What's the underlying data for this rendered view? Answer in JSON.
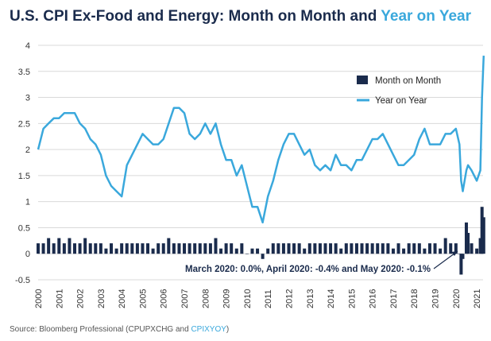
{
  "title": {
    "main": "U.S. CPI Ex-Food and Energy: Month on Month and ",
    "accent": "Year on Year"
  },
  "source": {
    "prefix": "Source: Bloomberg Professional (CPUPXCHG and ",
    "accent": "CPIXYOY",
    "suffix": ")"
  },
  "colors": {
    "mom": "#1a2b4c",
    "yoy": "#3aa8dc",
    "title": "#1a2b4c",
    "grid": "#d9d9d9"
  },
  "chart_data": {
    "type": "bar",
    "title": "U.S. CPI Ex-Food and Energy: Month on Month and Year on Year",
    "ylim": [
      -0.5,
      4
    ],
    "yticks": [
      -0.5,
      0,
      0.5,
      1,
      1.5,
      2,
      2.5,
      3,
      3.5,
      4
    ],
    "xlim": [
      2000,
      2021.3
    ],
    "xticks": [
      "2000",
      "2001",
      "2002",
      "2003",
      "2004",
      "2005",
      "2006",
      "2007",
      "2008",
      "2009",
      "2010",
      "2011",
      "2012",
      "2013",
      "2014",
      "2015",
      "2016",
      "2017",
      "2018",
      "2019",
      "2020",
      "2021"
    ],
    "grid": true,
    "legend_position": "top-right",
    "legend": [
      {
        "label": "Month on Month",
        "kind": "bar"
      },
      {
        "label": "Year on Year",
        "kind": "line"
      }
    ],
    "annotation": "March 2020: 0.0%, April 2020: -0.4% and May 2020: -0.1%",
    "series": [
      {
        "name": "Month on Month",
        "kind": "bar",
        "x": [
          2000.0,
          2000.25,
          2000.5,
          2000.75,
          2001.0,
          2001.25,
          2001.5,
          2001.75,
          2002.0,
          2002.25,
          2002.5,
          2002.75,
          2003.0,
          2003.25,
          2003.5,
          2003.75,
          2004.0,
          2004.25,
          2004.5,
          2004.75,
          2005.0,
          2005.25,
          2005.5,
          2005.75,
          2006.0,
          2006.25,
          2006.5,
          2006.75,
          2007.0,
          2007.25,
          2007.5,
          2007.75,
          2008.0,
          2008.25,
          2008.5,
          2008.75,
          2009.0,
          2009.25,
          2009.5,
          2009.75,
          2010.0,
          2010.25,
          2010.5,
          2010.75,
          2011.0,
          2011.25,
          2011.5,
          2011.75,
          2012.0,
          2012.25,
          2012.5,
          2012.75,
          2013.0,
          2013.25,
          2013.5,
          2013.75,
          2014.0,
          2014.25,
          2014.5,
          2014.75,
          2015.0,
          2015.25,
          2015.5,
          2015.75,
          2016.0,
          2016.25,
          2016.5,
          2016.75,
          2017.0,
          2017.25,
          2017.5,
          2017.75,
          2018.0,
          2018.25,
          2018.5,
          2018.75,
          2019.0,
          2019.25,
          2019.5,
          2019.75,
          2020.0,
          2020.17,
          2020.25,
          2020.33,
          2020.5,
          2020.58,
          2020.75,
          2021.0,
          2021.17,
          2021.25,
          2021.33
        ],
        "y": [
          0.2,
          0.2,
          0.3,
          0.2,
          0.3,
          0.2,
          0.3,
          0.2,
          0.2,
          0.3,
          0.2,
          0.2,
          0.2,
          0.1,
          0.2,
          0.1,
          0.2,
          0.2,
          0.2,
          0.2,
          0.2,
          0.2,
          0.1,
          0.2,
          0.2,
          0.3,
          0.2,
          0.2,
          0.2,
          0.2,
          0.2,
          0.2,
          0.2,
          0.2,
          0.3,
          0.1,
          0.2,
          0.2,
          0.1,
          0.2,
          0.0,
          0.1,
          0.1,
          -0.1,
          0.1,
          0.2,
          0.2,
          0.2,
          0.2,
          0.2,
          0.2,
          0.1,
          0.2,
          0.2,
          0.2,
          0.2,
          0.2,
          0.2,
          0.1,
          0.2,
          0.2,
          0.2,
          0.2,
          0.2,
          0.2,
          0.2,
          0.2,
          0.2,
          0.1,
          0.2,
          0.1,
          0.2,
          0.2,
          0.2,
          0.1,
          0.2,
          0.2,
          0.1,
          0.3,
          0.2,
          0.2,
          0.0,
          -0.4,
          -0.1,
          0.6,
          0.4,
          0.2,
          0.1,
          0.3,
          0.9,
          0.7
        ]
      },
      {
        "name": "Year on Year",
        "kind": "line",
        "x": [
          2000.0,
          2000.25,
          2000.5,
          2000.75,
          2001.0,
          2001.25,
          2001.5,
          2001.75,
          2002.0,
          2002.25,
          2002.5,
          2002.75,
          2003.0,
          2003.25,
          2003.5,
          2003.75,
          2004.0,
          2004.25,
          2004.5,
          2004.75,
          2005.0,
          2005.25,
          2005.5,
          2005.75,
          2006.0,
          2006.25,
          2006.5,
          2006.75,
          2007.0,
          2007.25,
          2007.5,
          2007.75,
          2008.0,
          2008.25,
          2008.5,
          2008.75,
          2009.0,
          2009.25,
          2009.5,
          2009.75,
          2010.0,
          2010.25,
          2010.5,
          2010.75,
          2011.0,
          2011.25,
          2011.5,
          2011.75,
          2012.0,
          2012.25,
          2012.5,
          2012.75,
          2013.0,
          2013.25,
          2013.5,
          2013.75,
          2014.0,
          2014.25,
          2014.5,
          2014.75,
          2015.0,
          2015.25,
          2015.5,
          2015.75,
          2016.0,
          2016.25,
          2016.5,
          2016.75,
          2017.0,
          2017.25,
          2017.5,
          2017.75,
          2018.0,
          2018.25,
          2018.5,
          2018.75,
          2019.0,
          2019.25,
          2019.5,
          2019.75,
          2020.0,
          2020.17,
          2020.25,
          2020.33,
          2020.5,
          2020.58,
          2020.75,
          2021.0,
          2021.17,
          2021.25,
          2021.33
        ],
        "y": [
          2.0,
          2.4,
          2.5,
          2.6,
          2.6,
          2.7,
          2.7,
          2.7,
          2.5,
          2.4,
          2.2,
          2.1,
          1.9,
          1.5,
          1.3,
          1.2,
          1.1,
          1.7,
          1.9,
          2.1,
          2.3,
          2.2,
          2.1,
          2.1,
          2.2,
          2.5,
          2.8,
          2.8,
          2.7,
          2.3,
          2.2,
          2.3,
          2.5,
          2.3,
          2.5,
          2.1,
          1.8,
          1.8,
          1.5,
          1.7,
          1.3,
          0.9,
          0.9,
          0.6,
          1.1,
          1.4,
          1.8,
          2.1,
          2.3,
          2.3,
          2.1,
          1.9,
          2.0,
          1.7,
          1.6,
          1.7,
          1.6,
          1.9,
          1.7,
          1.7,
          1.6,
          1.8,
          1.8,
          2.0,
          2.2,
          2.2,
          2.3,
          2.1,
          1.9,
          1.7,
          1.7,
          1.8,
          1.9,
          2.2,
          2.4,
          2.1,
          2.1,
          2.1,
          2.3,
          2.3,
          2.4,
          2.1,
          1.4,
          1.2,
          1.6,
          1.7,
          1.6,
          1.4,
          1.6,
          3.0,
          3.8
        ]
      }
    ]
  }
}
